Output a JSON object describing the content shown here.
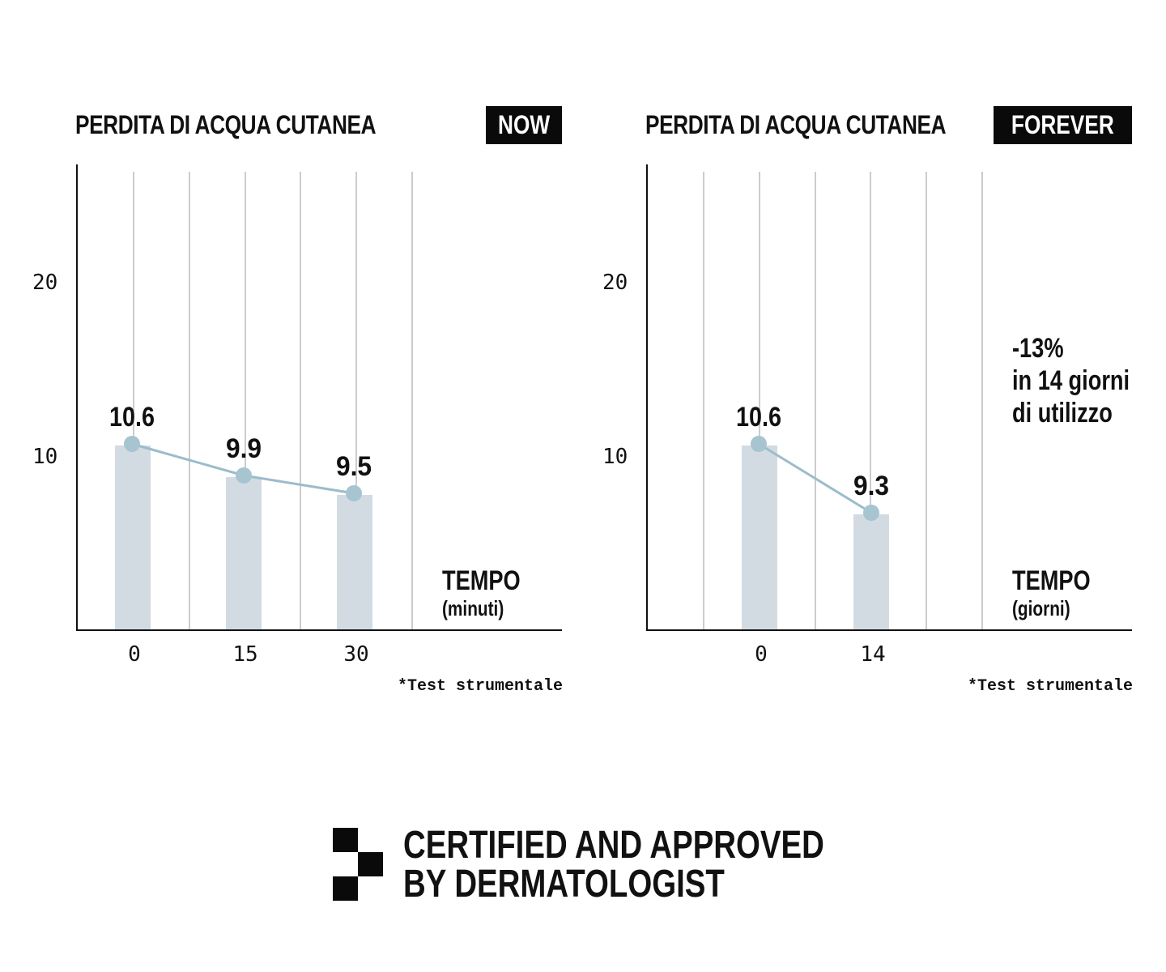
{
  "chart_data": [
    {
      "type": "bar",
      "title": "PERDITA DI ACQUA CUTANEA",
      "badge": "NOW",
      "x": [
        0,
        15,
        30
      ],
      "x_tick_labels": [
        "0",
        "15",
        "30"
      ],
      "values": [
        10.6,
        9.9,
        9.5
      ],
      "data_labels": [
        "10.6",
        "9.9",
        "9.5"
      ],
      "y_tick_labels": [
        "20",
        "10"
      ],
      "y_ticks": [
        20,
        10
      ],
      "xlabel": "TEMPO",
      "xlabel_unit": "(minuti)",
      "footnote": "*Test strumentale",
      "overlay": "line",
      "grid": "vertical",
      "colors": {
        "bar": "#d3dbe2",
        "line": "#9bbccb",
        "marker": "#a7c4d1",
        "grid": "#9a9a9a"
      }
    },
    {
      "type": "bar",
      "title": "PERDITA DI ACQUA CUTANEA",
      "badge": "FOREVER",
      "x": [
        0,
        14
      ],
      "x_tick_labels": [
        "0",
        "14"
      ],
      "values": [
        10.6,
        9.3
      ],
      "data_labels": [
        "10.6",
        "9.3"
      ],
      "y_tick_labels": [
        "20",
        "10"
      ],
      "y_ticks": [
        20,
        10
      ],
      "xlabel": "TEMPO",
      "xlabel_unit": "(giorni)",
      "footnote": "*Test strumentale",
      "annotation": [
        "-13%",
        "in 14 giorni",
        "di utilizzo"
      ],
      "overlay": "line",
      "grid": "vertical",
      "colors": {
        "bar": "#d3dbe2",
        "line": "#9bbccb",
        "marker": "#a7c4d1",
        "grid": "#9a9a9a"
      }
    }
  ],
  "certification": {
    "line1": "CERTIFIED AND APPROVED",
    "line2": "BY DERMATOLOGIST",
    "logo_icon": "checkered-squares-icon"
  }
}
